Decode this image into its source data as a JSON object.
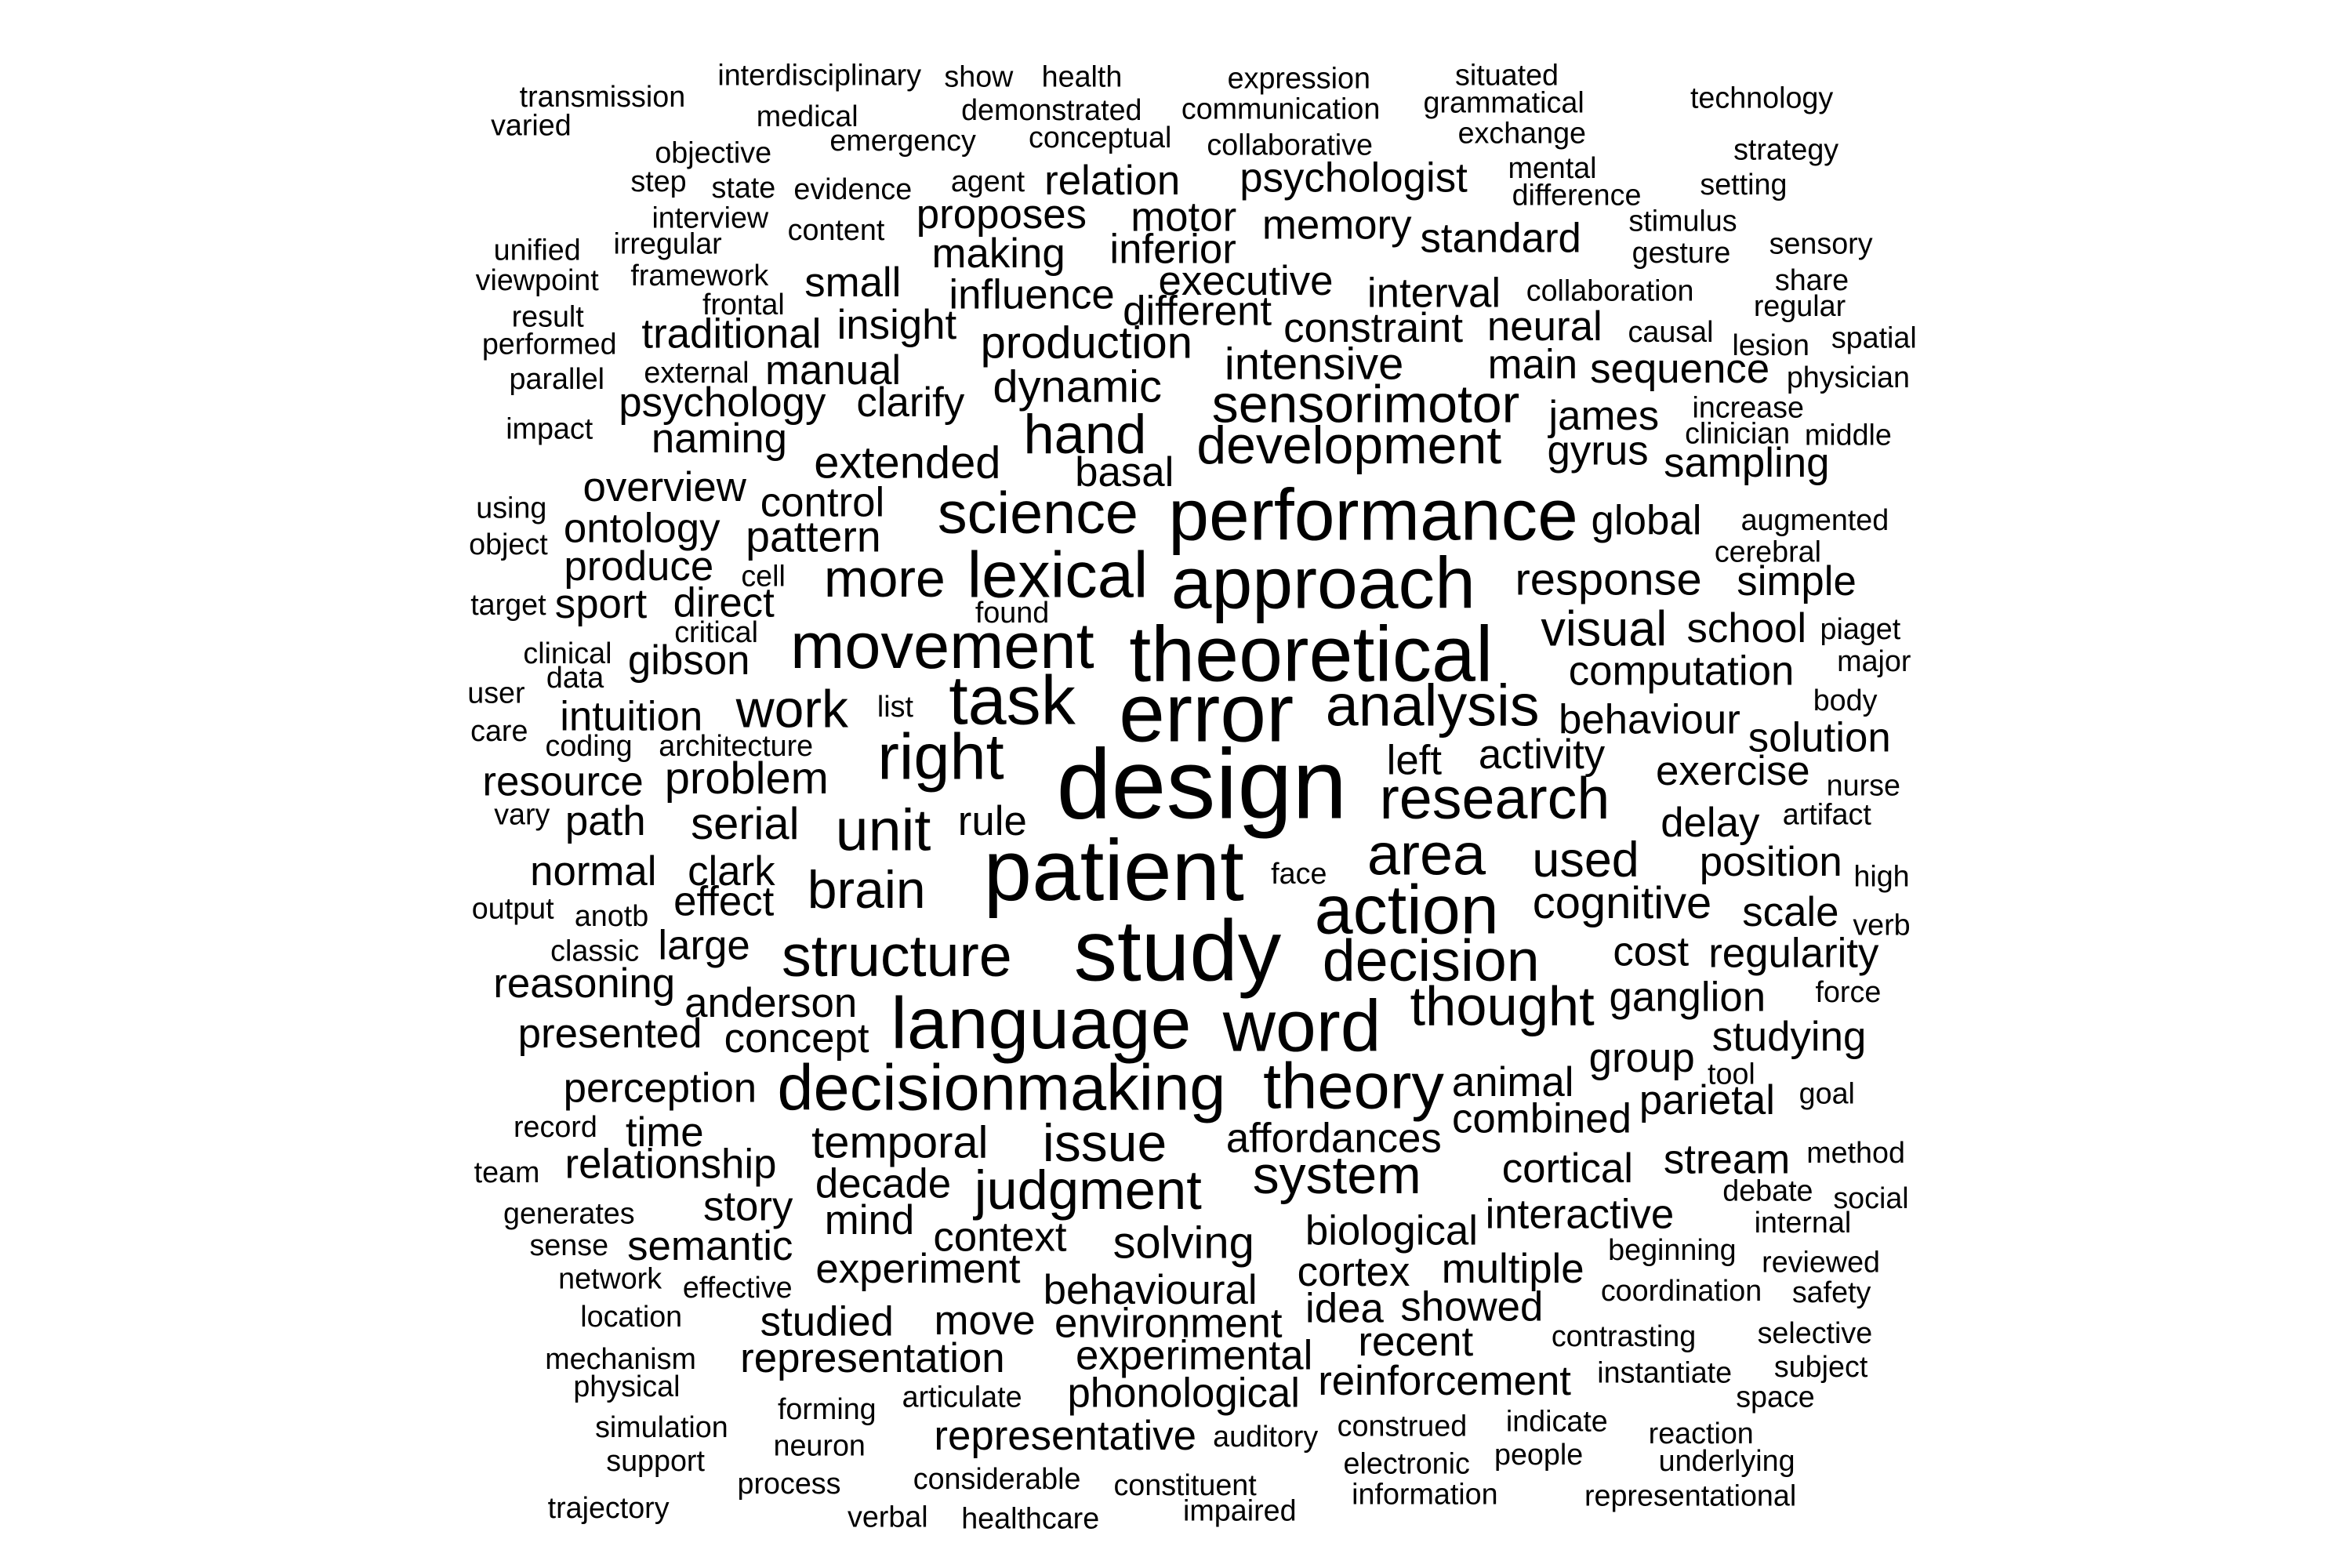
{
  "colors": {
    "background": "#ffffff",
    "text": "#000000"
  },
  "words": [
    {
      "text": "design",
      "size": 5
    },
    {
      "text": "error",
      "size": 4.2
    },
    {
      "text": "patient",
      "size": 4.4
    },
    {
      "text": "study",
      "size": 4.4
    },
    {
      "text": "theoretical",
      "size": 4
    },
    {
      "text": "performance",
      "size": 3.7
    },
    {
      "text": "approach",
      "size": 3.7
    },
    {
      "text": "language",
      "size": 3.7
    },
    {
      "text": "word",
      "size": 3.7
    },
    {
      "text": "task",
      "size": 3.5
    },
    {
      "text": "action",
      "size": 3.5
    },
    {
      "text": "movement",
      "size": 3.3
    },
    {
      "text": "lexical",
      "size": 3.3
    },
    {
      "text": "right",
      "size": 3.3
    },
    {
      "text": "decisionmaking",
      "size": 3.3
    },
    {
      "text": "theory",
      "size": 3.3
    },
    {
      "text": "science",
      "size": 3.0
    },
    {
      "text": "analysis",
      "size": 3.0
    },
    {
      "text": "research",
      "size": 3.0
    },
    {
      "text": "area",
      "size": 3.0
    },
    {
      "text": "structure",
      "size": 3.0
    },
    {
      "text": "decision",
      "size": 3.0
    },
    {
      "text": "unit",
      "size": 3.0
    },
    {
      "text": "thought",
      "size": 2.8
    },
    {
      "text": "judgment",
      "size": 2.8
    },
    {
      "text": "hand",
      "size": 2.8
    },
    {
      "text": "development",
      "size": 2.7
    },
    {
      "text": "sensorimotor",
      "size": 2.7
    },
    {
      "text": "more",
      "size": 2.7
    },
    {
      "text": "work",
      "size": 2.7
    },
    {
      "text": "brain",
      "size": 2.7
    },
    {
      "text": "issue",
      "size": 2.7
    },
    {
      "text": "system",
      "size": 2.7
    },
    {
      "text": "visual",
      "size": 2.5
    },
    {
      "text": "used",
      "size": 2.5
    },
    {
      "text": "extended",
      "size": 2.3
    },
    {
      "text": "production",
      "size": 2.3
    },
    {
      "text": "dynamic",
      "size": 2.3
    },
    {
      "text": "intensive",
      "size": 2.3
    },
    {
      "text": "response",
      "size": 2.3
    },
    {
      "text": "temporal",
      "size": 2.3
    },
    {
      "text": "solving",
      "size": 2.3
    },
    {
      "text": "problem",
      "size": 2.3
    },
    {
      "text": "serial",
      "size": 2.3
    },
    {
      "text": "cognitive",
      "size": 2.3
    },
    {
      "text": "pattern",
      "size": 2.2
    },
    {
      "text": "psychologist",
      "size": 2.1
    },
    {
      "text": "relation",
      "size": 2.1
    },
    {
      "text": "proposes",
      "size": 2.1
    },
    {
      "text": "motor",
      "size": 2.1
    },
    {
      "text": "memory",
      "size": 2.1
    },
    {
      "text": "standard",
      "size": 2.1
    },
    {
      "text": "making",
      "size": 2.1
    },
    {
      "text": "inferior",
      "size": 2.1
    },
    {
      "text": "influence",
      "size": 2.1
    },
    {
      "text": "executive",
      "size": 2.1
    },
    {
      "text": "different",
      "size": 2.1
    },
    {
      "text": "interval",
      "size": 2.1
    },
    {
      "text": "constraint",
      "size": 2.1
    },
    {
      "text": "neural",
      "size": 2.1
    },
    {
      "text": "traditional",
      "size": 2.1
    },
    {
      "text": "insight",
      "size": 2.1
    },
    {
      "text": "small",
      "size": 2.1
    },
    {
      "text": "manual",
      "size": 2.1
    },
    {
      "text": "main",
      "size": 2.1
    },
    {
      "text": "sequence",
      "size": 2.1
    },
    {
      "text": "psychology",
      "size": 2.1
    },
    {
      "text": "clarify",
      "size": 2.1
    },
    {
      "text": "james",
      "size": 2.1
    },
    {
      "text": "naming",
      "size": 2.1
    },
    {
      "text": "gyrus",
      "size": 2.1
    },
    {
      "text": "sampling",
      "size": 2.1
    },
    {
      "text": "basal",
      "size": 2.1
    },
    {
      "text": "overview",
      "size": 2.1
    },
    {
      "text": "control",
      "size": 2.1
    },
    {
      "text": "global",
      "size": 2.1
    },
    {
      "text": "ontology",
      "size": 2.1
    },
    {
      "text": "produce",
      "size": 2.1
    },
    {
      "text": "simple",
      "size": 2.1
    },
    {
      "text": "sport",
      "size": 2.1
    },
    {
      "text": "direct",
      "size": 2.1
    },
    {
      "text": "school",
      "size": 2.1
    },
    {
      "text": "gibson",
      "size": 2.1
    },
    {
      "text": "computation",
      "size": 2.1
    },
    {
      "text": "intuition",
      "size": 2.1
    },
    {
      "text": "behaviour",
      "size": 2.1
    },
    {
      "text": "left",
      "size": 2.1
    },
    {
      "text": "activity",
      "size": 2.1
    },
    {
      "text": "solution",
      "size": 2.1
    },
    {
      "text": "resource",
      "size": 2.1
    },
    {
      "text": "exercise",
      "size": 2.1
    },
    {
      "text": "path",
      "size": 2.1
    },
    {
      "text": "rule",
      "size": 2.1
    },
    {
      "text": "delay",
      "size": 2.1
    },
    {
      "text": "normal",
      "size": 2.1
    },
    {
      "text": "clark",
      "size": 2.1
    },
    {
      "text": "position",
      "size": 2.1
    },
    {
      "text": "effect",
      "size": 2.1
    },
    {
      "text": "scale",
      "size": 2.1
    },
    {
      "text": "large",
      "size": 2.1
    },
    {
      "text": "cost",
      "size": 2.1
    },
    {
      "text": "regularity",
      "size": 2.1
    },
    {
      "text": "reasoning",
      "size": 2.1
    },
    {
      "text": "anderson",
      "size": 2.1
    },
    {
      "text": "ganglion",
      "size": 2.1
    },
    {
      "text": "presented",
      "size": 2.1
    },
    {
      "text": "concept",
      "size": 2.1
    },
    {
      "text": "studying",
      "size": 2.1
    },
    {
      "text": "group",
      "size": 2.1
    },
    {
      "text": "perception",
      "size": 2.1
    },
    {
      "text": "animal",
      "size": 2.1
    },
    {
      "text": "parietal",
      "size": 2.1
    },
    {
      "text": "time",
      "size": 2.1
    },
    {
      "text": "affordances",
      "size": 2.1
    },
    {
      "text": "combined",
      "size": 2.1
    },
    {
      "text": "relationship",
      "size": 2.1
    },
    {
      "text": "cortical",
      "size": 2.1
    },
    {
      "text": "stream",
      "size": 2.1
    },
    {
      "text": "decade",
      "size": 2.1
    },
    {
      "text": "story",
      "size": 2.1
    },
    {
      "text": "mind",
      "size": 2.1
    },
    {
      "text": "interactive",
      "size": 2.1
    },
    {
      "text": "biological",
      "size": 2.1
    },
    {
      "text": "context",
      "size": 2.1
    },
    {
      "text": "semantic",
      "size": 2.1
    },
    {
      "text": "experiment",
      "size": 2.1
    },
    {
      "text": "multiple",
      "size": 2.1
    },
    {
      "text": "cortex",
      "size": 2.1
    },
    {
      "text": "behavioural",
      "size": 2.1
    },
    {
      "text": "idea",
      "size": 2.1
    },
    {
      "text": "showed",
      "size": 2.1
    },
    {
      "text": "studied",
      "size": 2.1
    },
    {
      "text": "move",
      "size": 2.1
    },
    {
      "text": "environment",
      "size": 2.1
    },
    {
      "text": "recent",
      "size": 2.1
    },
    {
      "text": "representation",
      "size": 2.1
    },
    {
      "text": "experimental",
      "size": 2.1
    },
    {
      "text": "reinforcement",
      "size": 2.1
    },
    {
      "text": "phonological",
      "size": 2.1
    },
    {
      "text": "representative",
      "size": 2.1
    },
    {
      "text": "interdisciplinary",
      "size": 1.5
    },
    {
      "text": "show",
      "size": 1.5
    },
    {
      "text": "health",
      "size": 1.5
    },
    {
      "text": "expression",
      "size": 1.5
    },
    {
      "text": "situated",
      "size": 1.5
    },
    {
      "text": "transmission",
      "size": 1.5
    },
    {
      "text": "grammatical",
      "size": 1.5
    },
    {
      "text": "technology",
      "size": 1.5
    },
    {
      "text": "demonstrated",
      "size": 1.5
    },
    {
      "text": "communication",
      "size": 1.5
    },
    {
      "text": "medical",
      "size": 1.5
    },
    {
      "text": "varied",
      "size": 1.5
    },
    {
      "text": "exchange",
      "size": 1.5
    },
    {
      "text": "conceptual",
      "size": 1.5
    },
    {
      "text": "emergency",
      "size": 1.5
    },
    {
      "text": "collaborative",
      "size": 1.5
    },
    {
      "text": "objective",
      "size": 1.5
    },
    {
      "text": "strategy",
      "size": 1.5
    },
    {
      "text": "mental",
      "size": 1.5
    },
    {
      "text": "agent",
      "size": 1.5
    },
    {
      "text": "step",
      "size": 1.5
    },
    {
      "text": "state",
      "size": 1.5
    },
    {
      "text": "evidence",
      "size": 1.5
    },
    {
      "text": "setting",
      "size": 1.5
    },
    {
      "text": "difference",
      "size": 1.5
    },
    {
      "text": "interview",
      "size": 1.5
    },
    {
      "text": "content",
      "size": 1.5
    },
    {
      "text": "stimulus",
      "size": 1.5
    },
    {
      "text": "irregular",
      "size": 1.5
    },
    {
      "text": "unified",
      "size": 1.5
    },
    {
      "text": "gesture",
      "size": 1.5
    },
    {
      "text": "sensory",
      "size": 1.5
    },
    {
      "text": "viewpoint",
      "size": 1.5
    },
    {
      "text": "framework",
      "size": 1.5
    },
    {
      "text": "collaboration",
      "size": 1.5
    },
    {
      "text": "share",
      "size": 1.5
    },
    {
      "text": "frontal",
      "size": 1.5
    },
    {
      "text": "regular",
      "size": 1.5
    },
    {
      "text": "result",
      "size": 1.5
    },
    {
      "text": "causal",
      "size": 1.5
    },
    {
      "text": "spatial",
      "size": 1.5
    },
    {
      "text": "performed",
      "size": 1.5
    },
    {
      "text": "lesion",
      "size": 1.5
    },
    {
      "text": "external",
      "size": 1.5
    },
    {
      "text": "parallel",
      "size": 1.5
    },
    {
      "text": "physician",
      "size": 1.5
    },
    {
      "text": "increase",
      "size": 1.5
    },
    {
      "text": "impact",
      "size": 1.5
    },
    {
      "text": "clinician",
      "size": 1.5
    },
    {
      "text": "middle",
      "size": 1.5
    },
    {
      "text": "using",
      "size": 1.5
    },
    {
      "text": "augmented",
      "size": 1.5
    },
    {
      "text": "object",
      "size": 1.5
    },
    {
      "text": "cerebral",
      "size": 1.5
    },
    {
      "text": "cell",
      "size": 1.5
    },
    {
      "text": "target",
      "size": 1.5
    },
    {
      "text": "found",
      "size": 1.5
    },
    {
      "text": "piaget",
      "size": 1.5
    },
    {
      "text": "critical",
      "size": 1.5
    },
    {
      "text": "clinical",
      "size": 1.5
    },
    {
      "text": "major",
      "size": 1.5
    },
    {
      "text": "data",
      "size": 1.5
    },
    {
      "text": "user",
      "size": 1.5
    },
    {
      "text": "list",
      "size": 1.5
    },
    {
      "text": "body",
      "size": 1.5
    },
    {
      "text": "care",
      "size": 1.5
    },
    {
      "text": "coding",
      "size": 1.5
    },
    {
      "text": "architecture",
      "size": 1.5
    },
    {
      "text": "nurse",
      "size": 1.5
    },
    {
      "text": "vary",
      "size": 1.5
    },
    {
      "text": "artifact",
      "size": 1.5
    },
    {
      "text": "face",
      "size": 1.5
    },
    {
      "text": "high",
      "size": 1.5
    },
    {
      "text": "output",
      "size": 1.5
    },
    {
      "text": "anotb",
      "size": 1.5
    },
    {
      "text": "verb",
      "size": 1.5
    },
    {
      "text": "classic",
      "size": 1.5
    },
    {
      "text": "force",
      "size": 1.5
    },
    {
      "text": "tool",
      "size": 1.5
    },
    {
      "text": "goal",
      "size": 1.5
    },
    {
      "text": "record",
      "size": 1.5
    },
    {
      "text": "method",
      "size": 1.5
    },
    {
      "text": "team",
      "size": 1.5
    },
    {
      "text": "debate",
      "size": 1.5
    },
    {
      "text": "social",
      "size": 1.5
    },
    {
      "text": "generates",
      "size": 1.5
    },
    {
      "text": "internal",
      "size": 1.5
    },
    {
      "text": "sense",
      "size": 1.5
    },
    {
      "text": "beginning",
      "size": 1.5
    },
    {
      "text": "reviewed",
      "size": 1.5
    },
    {
      "text": "network",
      "size": 1.5
    },
    {
      "text": "effective",
      "size": 1.5
    },
    {
      "text": "coordination",
      "size": 1.5
    },
    {
      "text": "safety",
      "size": 1.5
    },
    {
      "text": "location",
      "size": 1.5
    },
    {
      "text": "contrasting",
      "size": 1.5
    },
    {
      "text": "selective",
      "size": 1.5
    },
    {
      "text": "mechanism",
      "size": 1.5
    },
    {
      "text": "physical",
      "size": 1.5
    },
    {
      "text": "instantiate",
      "size": 1.5
    },
    {
      "text": "subject",
      "size": 1.5
    },
    {
      "text": "forming",
      "size": 1.5
    },
    {
      "text": "articulate",
      "size": 1.5
    },
    {
      "text": "space",
      "size": 1.5
    },
    {
      "text": "simulation",
      "size": 1.5
    },
    {
      "text": "construed",
      "size": 1.5
    },
    {
      "text": "indicate",
      "size": 1.5
    },
    {
      "text": "reaction",
      "size": 1.5
    },
    {
      "text": "neuron",
      "size": 1.5
    },
    {
      "text": "auditory",
      "size": 1.5
    },
    {
      "text": "support",
      "size": 1.5
    },
    {
      "text": "electronic",
      "size": 1.5
    },
    {
      "text": "people",
      "size": 1.5
    },
    {
      "text": "underlying",
      "size": 1.5
    },
    {
      "text": "process",
      "size": 1.5
    },
    {
      "text": "considerable",
      "size": 1.5
    },
    {
      "text": "constituent",
      "size": 1.5
    },
    {
      "text": "information",
      "size": 1.5
    },
    {
      "text": "representational",
      "size": 1.5
    },
    {
      "text": "trajectory",
      "size": 1.5
    },
    {
      "text": "impaired",
      "size": 1.5
    },
    {
      "text": "verbal",
      "size": 1.5
    },
    {
      "text": "healthcare",
      "size": 1.5
    }
  ]
}
